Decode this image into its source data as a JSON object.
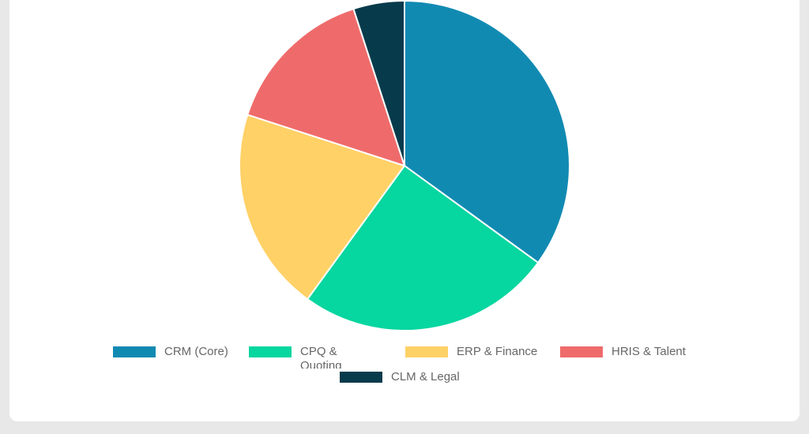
{
  "chart_data": {
    "type": "pie",
    "categories": [
      "CRM (Core)",
      "CPQ & Quoting",
      "ERP & Finance",
      "HRIS & Talent",
      "CLM & Legal"
    ],
    "values": [
      35,
      25,
      20,
      15,
      5
    ],
    "colors": [
      "#118ab2",
      "#06d6a0",
      "#ffd166",
      "#ef6b6b",
      "#073b4c"
    ],
    "legend_position": "bottom"
  }
}
